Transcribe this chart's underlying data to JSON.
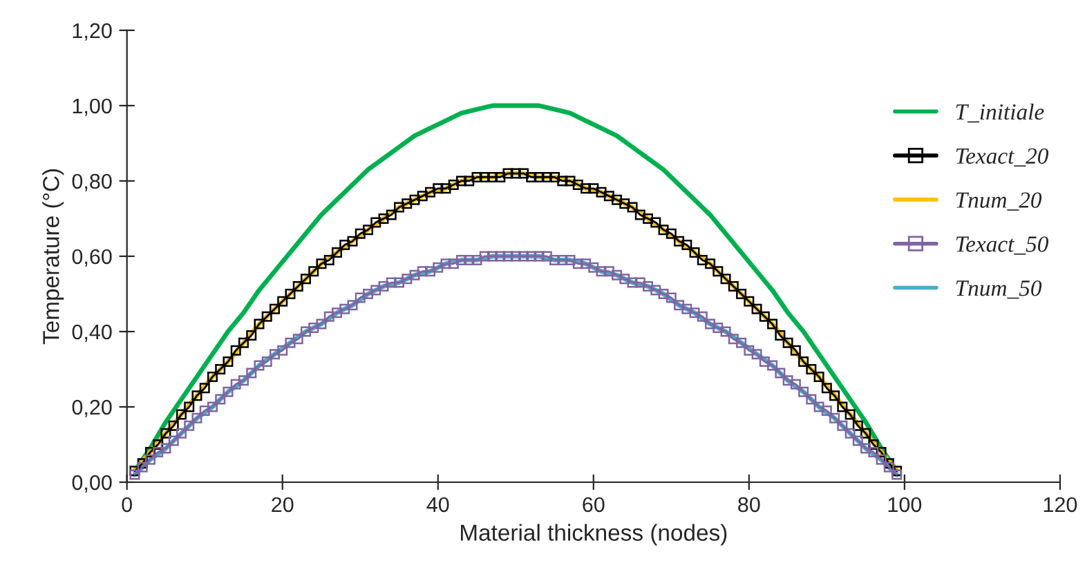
{
  "chart_data": {
    "type": "line",
    "xlabel": "Material thickness (nodes)",
    "ylabel": "Temperature (°C)",
    "xlim": [
      0,
      120
    ],
    "xticks": [
      0,
      20,
      40,
      60,
      80,
      100,
      120
    ],
    "ylim": [
      0,
      1.2
    ],
    "yticks": [
      {
        "value": 0,
        "label": "0,00"
      },
      {
        "value": 0.2,
        "label": "0,20"
      },
      {
        "value": 0.4,
        "label": "0,40"
      },
      {
        "value": 0.6,
        "label": "0,60"
      },
      {
        "value": 0.8,
        "label": "0,80"
      },
      {
        "value": 1.0,
        "label": "1,00"
      },
      {
        "value": 1.2,
        "label": "1,20"
      }
    ],
    "grid": false,
    "legend": "right",
    "series": [
      {
        "name": "T_initiale",
        "color": "#00b050",
        "marker": "none",
        "x": [
          1,
          3,
          5,
          7,
          9,
          11,
          13,
          15,
          17,
          19,
          21,
          23,
          25,
          27,
          29,
          31,
          33,
          35,
          37,
          39,
          41,
          43,
          45,
          47,
          49,
          51,
          53,
          55,
          57,
          59,
          61,
          63,
          65,
          67,
          69,
          71,
          73,
          75,
          77,
          79,
          81,
          83,
          85,
          87,
          89,
          91,
          93,
          95,
          97,
          99
        ],
        "values": [
          0.03,
          0.09,
          0.16,
          0.22,
          0.28,
          0.34,
          0.4,
          0.45,
          0.51,
          0.56,
          0.61,
          0.66,
          0.71,
          0.75,
          0.79,
          0.83,
          0.86,
          0.89,
          0.92,
          0.94,
          0.96,
          0.98,
          0.99,
          1.0,
          1.0,
          1.0,
          1.0,
          0.99,
          0.98,
          0.96,
          0.94,
          0.92,
          0.89,
          0.86,
          0.83,
          0.79,
          0.75,
          0.71,
          0.66,
          0.61,
          0.56,
          0.51,
          0.45,
          0.4,
          0.34,
          0.28,
          0.22,
          0.16,
          0.09,
          0.03
        ]
      },
      {
        "name": "Texact_20",
        "color": "#000000",
        "marker": "square",
        "x": [
          1,
          2,
          3,
          4,
          5,
          6,
          7,
          8,
          9,
          10,
          11,
          12,
          13,
          14,
          15,
          16,
          17,
          18,
          19,
          20,
          21,
          22,
          23,
          24,
          25,
          26,
          27,
          28,
          29,
          30,
          31,
          32,
          33,
          34,
          35,
          36,
          37,
          38,
          39,
          40,
          41,
          42,
          43,
          44,
          45,
          46,
          47,
          48,
          49,
          50,
          51,
          52,
          53,
          54,
          55,
          56,
          57,
          58,
          59,
          60,
          61,
          62,
          63,
          64,
          65,
          66,
          67,
          68,
          69,
          70,
          71,
          72,
          73,
          74,
          75,
          76,
          77,
          78,
          79,
          80,
          81,
          82,
          83,
          84,
          85,
          86,
          87,
          88,
          89,
          90,
          91,
          92,
          93,
          94,
          95,
          96,
          97,
          98,
          99
        ],
        "values": [
          0.03,
          0.05,
          0.08,
          0.1,
          0.13,
          0.15,
          0.18,
          0.2,
          0.23,
          0.25,
          0.28,
          0.3,
          0.32,
          0.35,
          0.37,
          0.39,
          0.42,
          0.44,
          0.46,
          0.48,
          0.5,
          0.52,
          0.54,
          0.56,
          0.58,
          0.59,
          0.61,
          0.63,
          0.64,
          0.66,
          0.67,
          0.69,
          0.7,
          0.71,
          0.73,
          0.74,
          0.75,
          0.76,
          0.77,
          0.78,
          0.78,
          0.79,
          0.8,
          0.8,
          0.81,
          0.81,
          0.81,
          0.81,
          0.82,
          0.82,
          0.82,
          0.81,
          0.81,
          0.81,
          0.81,
          0.8,
          0.8,
          0.79,
          0.78,
          0.78,
          0.77,
          0.76,
          0.75,
          0.74,
          0.73,
          0.71,
          0.7,
          0.69,
          0.67,
          0.66,
          0.64,
          0.63,
          0.61,
          0.59,
          0.58,
          0.56,
          0.54,
          0.52,
          0.5,
          0.48,
          0.46,
          0.44,
          0.42,
          0.39,
          0.37,
          0.35,
          0.32,
          0.3,
          0.28,
          0.25,
          0.23,
          0.2,
          0.18,
          0.15,
          0.13,
          0.1,
          0.08,
          0.05,
          0.03
        ]
      },
      {
        "name": "Tnum_20",
        "color": "#ffc000",
        "marker": "none",
        "x": [
          1,
          3,
          5,
          7,
          9,
          11,
          13,
          15,
          17,
          19,
          21,
          23,
          25,
          27,
          29,
          31,
          33,
          35,
          37,
          39,
          41,
          43,
          45,
          47,
          49,
          51,
          53,
          55,
          57,
          59,
          61,
          63,
          65,
          67,
          69,
          71,
          73,
          75,
          77,
          79,
          81,
          83,
          85,
          87,
          89,
          91,
          93,
          95,
          97,
          99
        ],
        "values": [
          0.03,
          0.08,
          0.13,
          0.18,
          0.23,
          0.28,
          0.32,
          0.37,
          0.42,
          0.46,
          0.5,
          0.54,
          0.58,
          0.61,
          0.64,
          0.67,
          0.7,
          0.73,
          0.75,
          0.77,
          0.78,
          0.8,
          0.81,
          0.81,
          0.82,
          0.82,
          0.81,
          0.81,
          0.8,
          0.78,
          0.77,
          0.75,
          0.73,
          0.7,
          0.67,
          0.64,
          0.61,
          0.58,
          0.54,
          0.5,
          0.46,
          0.42,
          0.37,
          0.32,
          0.28,
          0.23,
          0.18,
          0.13,
          0.08,
          0.03
        ]
      },
      {
        "name": "Texact_50",
        "color": "#8064a2",
        "marker": "square",
        "x": [
          1,
          2,
          3,
          4,
          5,
          6,
          7,
          8,
          9,
          10,
          11,
          12,
          13,
          14,
          15,
          16,
          17,
          18,
          19,
          20,
          21,
          22,
          23,
          24,
          25,
          26,
          27,
          28,
          29,
          30,
          31,
          32,
          33,
          34,
          35,
          36,
          37,
          38,
          39,
          40,
          41,
          42,
          43,
          44,
          45,
          46,
          47,
          48,
          49,
          50,
          51,
          52,
          53,
          54,
          55,
          56,
          57,
          58,
          59,
          60,
          61,
          62,
          63,
          64,
          65,
          66,
          67,
          68,
          69,
          70,
          71,
          72,
          73,
          74,
          75,
          76,
          77,
          78,
          79,
          80,
          81,
          82,
          83,
          84,
          85,
          86,
          87,
          88,
          89,
          90,
          91,
          92,
          93,
          94,
          95,
          96,
          97,
          98,
          99
        ],
        "values": [
          0.02,
          0.04,
          0.06,
          0.08,
          0.09,
          0.11,
          0.13,
          0.15,
          0.17,
          0.19,
          0.2,
          0.22,
          0.24,
          0.26,
          0.27,
          0.29,
          0.31,
          0.32,
          0.34,
          0.35,
          0.37,
          0.38,
          0.4,
          0.41,
          0.42,
          0.44,
          0.45,
          0.46,
          0.47,
          0.49,
          0.5,
          0.51,
          0.52,
          0.53,
          0.53,
          0.54,
          0.55,
          0.56,
          0.56,
          0.57,
          0.58,
          0.58,
          0.59,
          0.59,
          0.59,
          0.6,
          0.6,
          0.6,
          0.6,
          0.6,
          0.6,
          0.6,
          0.6,
          0.6,
          0.59,
          0.59,
          0.59,
          0.58,
          0.58,
          0.57,
          0.56,
          0.56,
          0.55,
          0.54,
          0.53,
          0.53,
          0.52,
          0.51,
          0.5,
          0.49,
          0.47,
          0.46,
          0.45,
          0.44,
          0.42,
          0.41,
          0.4,
          0.38,
          0.37,
          0.35,
          0.34,
          0.32,
          0.31,
          0.29,
          0.27,
          0.26,
          0.24,
          0.22,
          0.2,
          0.19,
          0.17,
          0.15,
          0.13,
          0.11,
          0.09,
          0.08,
          0.06,
          0.04,
          0.02
        ]
      },
      {
        "name": "Tnum_50",
        "color": "#4bacc6",
        "marker": "none",
        "x": [
          1,
          3,
          5,
          7,
          9,
          11,
          13,
          15,
          17,
          19,
          21,
          23,
          25,
          27,
          29,
          31,
          33,
          35,
          37,
          39,
          41,
          43,
          45,
          47,
          49,
          51,
          53,
          55,
          57,
          59,
          61,
          63,
          65,
          67,
          69,
          71,
          73,
          75,
          77,
          79,
          81,
          83,
          85,
          87,
          89,
          91,
          93,
          95,
          97,
          99
        ],
        "values": [
          0.02,
          0.06,
          0.09,
          0.13,
          0.17,
          0.2,
          0.24,
          0.27,
          0.31,
          0.34,
          0.37,
          0.4,
          0.42,
          0.45,
          0.47,
          0.5,
          0.52,
          0.53,
          0.55,
          0.56,
          0.58,
          0.59,
          0.59,
          0.6,
          0.6,
          0.6,
          0.6,
          0.59,
          0.59,
          0.58,
          0.56,
          0.55,
          0.53,
          0.52,
          0.5,
          0.47,
          0.45,
          0.42,
          0.4,
          0.37,
          0.34,
          0.31,
          0.27,
          0.24,
          0.2,
          0.17,
          0.13,
          0.09,
          0.06,
          0.02
        ]
      }
    ]
  }
}
